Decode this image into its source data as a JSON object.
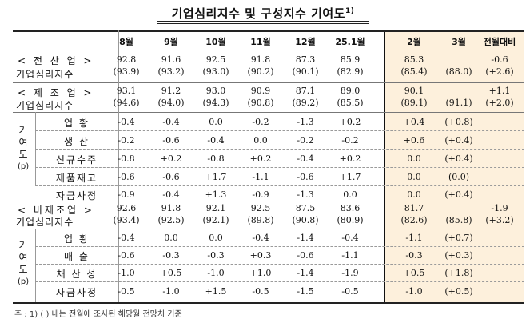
{
  "title": "기업심리지수 및 구성지수 기여도",
  "title_note": "1)",
  "columns": [
    "8월",
    "9월",
    "10월",
    "11월",
    "12월",
    "25.1월",
    "2월",
    "3월",
    "전월대비"
  ],
  "sections": {
    "all": {
      "label_line1": "< 전 산 업 >",
      "label_line2": "기업심리지수",
      "values": [
        "92.8",
        "91.6",
        "92.5",
        "91.8",
        "87.3",
        "85.9",
        "85.3",
        "",
        "-0.6"
      ],
      "sub": [
        "(93.9)",
        "(93.2)",
        "(93.0)",
        "(90.2)",
        "(90.1)",
        "(82.9)",
        "(85.4)",
        "(88.0)",
        "(+2.6)"
      ]
    },
    "mfg": {
      "label_line1": "< 제 조 업 >",
      "label_line2": "기업심리지수",
      "values": [
        "93.1",
        "91.2",
        "93.0",
        "90.9",
        "87.1",
        "89.0",
        "90.1",
        "",
        "+1.1"
      ],
      "sub": [
        "(94.6)",
        "(94.0)",
        "(94.3)",
        "(90.8)",
        "(89.2)",
        "(85.5)",
        "(89.1)",
        "(91.1)",
        "(+2.0)"
      ],
      "side_label": [
        "기",
        "여",
        "도",
        "(p)"
      ],
      "rows": [
        {
          "label": "업  황",
          "values": [
            "-0.4",
            "-0.4",
            "0.0",
            "-0.2",
            "-1.3",
            "+0.2",
            "+0.4",
            "(+0.8)",
            ""
          ]
        },
        {
          "label": "생  산",
          "values": [
            "-0.2",
            "-0.6",
            "-0.4",
            "0.0",
            "-0.2",
            "-0.2",
            "+0.6",
            "(+0.4)",
            ""
          ]
        },
        {
          "label": "신규수주",
          "values": [
            "-0.8",
            "+0.2",
            "-0.8",
            "+0.2",
            "-0.4",
            "+0.2",
            "0.0",
            "(+0.4)",
            ""
          ]
        },
        {
          "label": "제품재고",
          "values": [
            "-0.6",
            "-0.6",
            "+1.7",
            "-1.1",
            "-0.6",
            "+1.7",
            "0.0",
            "(0.0)",
            ""
          ]
        },
        {
          "label": "자금사정",
          "values": [
            "-0.9",
            "-0.4",
            "+1.3",
            "-0.9",
            "-1.3",
            "0.0",
            "0.0",
            "(+0.4)",
            ""
          ]
        }
      ]
    },
    "nonmfg": {
      "label_line1": "< 비제조업 >",
      "label_line2": "기업심리지수",
      "values": [
        "92.6",
        "91.8",
        "92.1",
        "92.5",
        "87.5",
        "83.6",
        "81.7",
        "",
        "-1.9"
      ],
      "sub": [
        "(93.4)",
        "(92.5)",
        "(92.1)",
        "(89.8)",
        "(90.8)",
        "(80.9)",
        "(82.6)",
        "(85.8)",
        "(+3.2)"
      ],
      "side_label": [
        "기",
        "여",
        "도",
        "(p)"
      ],
      "rows": [
        {
          "label": "업  황",
          "values": [
            "-0.4",
            "0.0",
            "0.0",
            "-0.4",
            "-1.4",
            "-0.4",
            "-1.1",
            "(+0.7)",
            ""
          ]
        },
        {
          "label": "매  출",
          "values": [
            "-0.6",
            "-0.3",
            "-0.3",
            "+0.3",
            "-0.6",
            "-1.1",
            "-0.3",
            "(+0.3)",
            ""
          ]
        },
        {
          "label": "채 산 성",
          "values": [
            "-1.0",
            "+0.5",
            "-1.0",
            "+1.0",
            "-1.4",
            "-1.9",
            "+0.5",
            "(+1.8)",
            ""
          ]
        },
        {
          "label": "자금사정",
          "values": [
            "-0.5",
            "-1.0",
            "+1.5",
            "-0.5",
            "-1.5",
            "-0.5",
            "-1.0",
            "(+0.5)",
            ""
          ]
        }
      ]
    }
  },
  "footnote": "주 : 1) (   ) 내는 전월에 조사된 해당월 전망치 기준"
}
